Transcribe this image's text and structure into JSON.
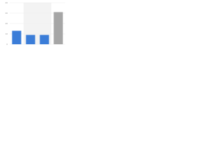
{
  "chart_data": {
    "type": "bar",
    "categories": [
      null,
      null,
      null,
      null
    ],
    "values": [
      13,
      9,
      9,
      31
    ],
    "colors": [
      "#3b7dd8",
      "#3b7dd8",
      "#3b7dd8",
      "#a6a6a6"
    ],
    "ylim": [
      0,
      40
    ],
    "yticks": [
      0,
      10,
      20,
      30,
      40
    ],
    "grid": true
  }
}
